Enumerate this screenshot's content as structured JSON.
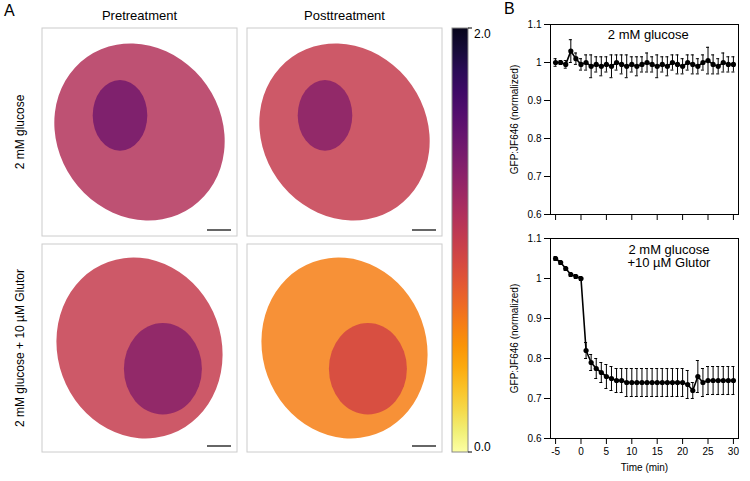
{
  "chart_data": [
    {
      "type": "image_grid",
      "panel_label": "A",
      "column_titles": [
        "Pretreatment",
        "Posttreatment"
      ],
      "row_titles": [
        "2 mM glucose",
        "2 mM glucose + 10 µM Glutor"
      ],
      "colorbar_range": [
        0,
        2
      ],
      "colorbar_ticks": [
        {
          "value": 2,
          "label": "2.0"
        },
        {
          "value": 0,
          "label": "0.0"
        }
      ]
    },
    {
      "type": "line",
      "panel_label": "B",
      "annotation": "2 mM glucose",
      "y_label": "GFP:JF646 (normalized)",
      "x": [
        -5,
        -4,
        -3,
        -2,
        -1,
        0,
        1,
        2,
        3,
        4,
        5,
        6,
        7,
        8,
        9,
        10,
        11,
        12,
        13,
        14,
        15,
        16,
        17,
        18,
        19,
        20,
        21,
        22,
        23,
        24,
        25,
        26,
        27,
        28,
        29,
        30
      ],
      "series": [
        {
          "color": "#000000",
          "marker": "circle",
          "values": [
            1.0,
            1.0,
            0.995,
            1.03,
            1.01,
            0.995,
            1.0,
            0.99,
            0.995,
            0.99,
            0.995,
            0.99,
            1.0,
            0.995,
            0.99,
            0.995,
            0.99,
            0.995,
            1.0,
            0.995,
            0.99,
            0.995,
            0.99,
            1.0,
            0.995,
            0.99,
            1.0,
            0.995,
            0.99,
            1.0,
            1.005,
            0.995,
            0.99,
            1.0,
            0.995,
            0.995
          ],
          "errors": [
            0.01,
            0.005,
            0.01,
            0.03,
            0.015,
            0.015,
            0.02,
            0.03,
            0.02,
            0.025,
            0.02,
            0.03,
            0.02,
            0.025,
            0.03,
            0.02,
            0.025,
            0.02,
            0.025,
            0.02,
            0.03,
            0.02,
            0.025,
            0.02,
            0.025,
            0.02,
            0.02,
            0.025,
            0.02,
            0.02,
            0.035,
            0.025,
            0.02,
            0.025,
            0.02,
            0.02
          ]
        }
      ],
      "xlim": [
        -6,
        31
      ],
      "xticks": [
        -5,
        0,
        5,
        10,
        15,
        20,
        25,
        30
      ],
      "ylim": [
        0.6,
        1.1
      ],
      "yticks": [
        0.6,
        0.7,
        0.8,
        0.9,
        1,
        1.1
      ],
      "tick_labels": "y"
    },
    {
      "type": "line",
      "annotation": "2 mM glucose\n+10 µM Glutor",
      "x_label": "Time (min)",
      "y_label": "GFP:JF646 (normalized)",
      "x": [
        -5,
        -4,
        -3,
        -2,
        -1,
        0,
        1,
        2,
        3,
        4,
        5,
        6,
        7,
        8,
        9,
        10,
        11,
        12,
        13,
        14,
        15,
        16,
        17,
        18,
        19,
        20,
        21,
        22,
        23,
        24,
        25,
        26,
        27,
        28,
        29,
        30
      ],
      "series": [
        {
          "color": "#000000",
          "marker": "circle",
          "values": [
            1.05,
            1.04,
            1.025,
            1.01,
            1.005,
            1.0,
            0.82,
            0.79,
            0.775,
            0.765,
            0.755,
            0.75,
            0.745,
            0.745,
            0.74,
            0.74,
            0.74,
            0.74,
            0.74,
            0.74,
            0.74,
            0.74,
            0.74,
            0.74,
            0.74,
            0.74,
            0.735,
            0.72,
            0.755,
            0.74,
            0.745,
            0.745,
            0.745,
            0.745,
            0.745,
            0.745
          ],
          "errors": [
            0.005,
            0.005,
            0.005,
            0.005,
            0.005,
            0.005,
            0.02,
            0.02,
            0.025,
            0.025,
            0.03,
            0.03,
            0.03,
            0.03,
            0.035,
            0.035,
            0.035,
            0.035,
            0.035,
            0.035,
            0.035,
            0.035,
            0.035,
            0.035,
            0.035,
            0.035,
            0.035,
            0.02,
            0.04,
            0.035,
            0.035,
            0.035,
            0.035,
            0.035,
            0.035,
            0.035
          ]
        }
      ],
      "xlim": [
        -6,
        31
      ],
      "xticks": [
        -5,
        0,
        5,
        10,
        15,
        20,
        25,
        30
      ],
      "ylim": [
        0.6,
        1.1
      ],
      "yticks": [
        0.6,
        0.7,
        0.8,
        0.9,
        1,
        1.1
      ]
    }
  ]
}
